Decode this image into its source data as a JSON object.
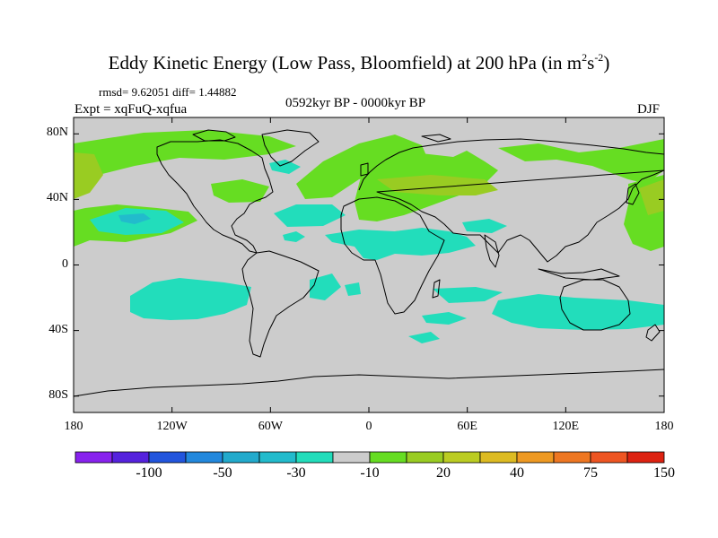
{
  "title": {
    "main": "Eddy Kinetic Energy (Low Pass, Bloomfield) at 200 hPa (in m",
    "sup1": "2",
    "mid": "s",
    "sup2": "-2",
    "end": ")"
  },
  "stats": "rmsd= 9.62051 diff= 1.44882",
  "period": "0592kyr BP - 0000kyr BP",
  "experiment": "Expt = xqFuQ-xqfua",
  "season": "DJF",
  "map": {
    "projection": "cylindrical equidistant",
    "lon_range": [
      -180,
      180
    ],
    "lat_range": [
      -90,
      90
    ],
    "lat_ticks": [
      "80N",
      "40N",
      "0",
      "40S",
      "80S"
    ],
    "lat_tick_values": [
      80,
      40,
      0,
      -40,
      -80
    ],
    "lon_ticks": [
      "180",
      "120W",
      "60W",
      "0",
      "60E",
      "120E",
      "180"
    ],
    "lon_tick_values": [
      -180,
      -120,
      -60,
      0,
      60,
      120,
      180
    ],
    "background_color": "#cccccc",
    "positive_color": "#66dd22",
    "positive_strong_color": "#99cc22",
    "negative_color": "#22ddbb",
    "negative_strong_color": "#22bbcc"
  },
  "colorbar": {
    "colors": [
      "#8822ee",
      "#5522dd",
      "#2255dd",
      "#2288dd",
      "#22aacc",
      "#22bbcc",
      "#22ddbb",
      "#cccccc",
      "#66dd22",
      "#99cc22",
      "#bbcc22",
      "#ddbb22",
      "#ee9922",
      "#ee7722",
      "#ee5522",
      "#dd2211"
    ],
    "labels": [
      "-100",
      "-50",
      "-30",
      "-10",
      "20",
      "40",
      "75",
      "150"
    ]
  }
}
